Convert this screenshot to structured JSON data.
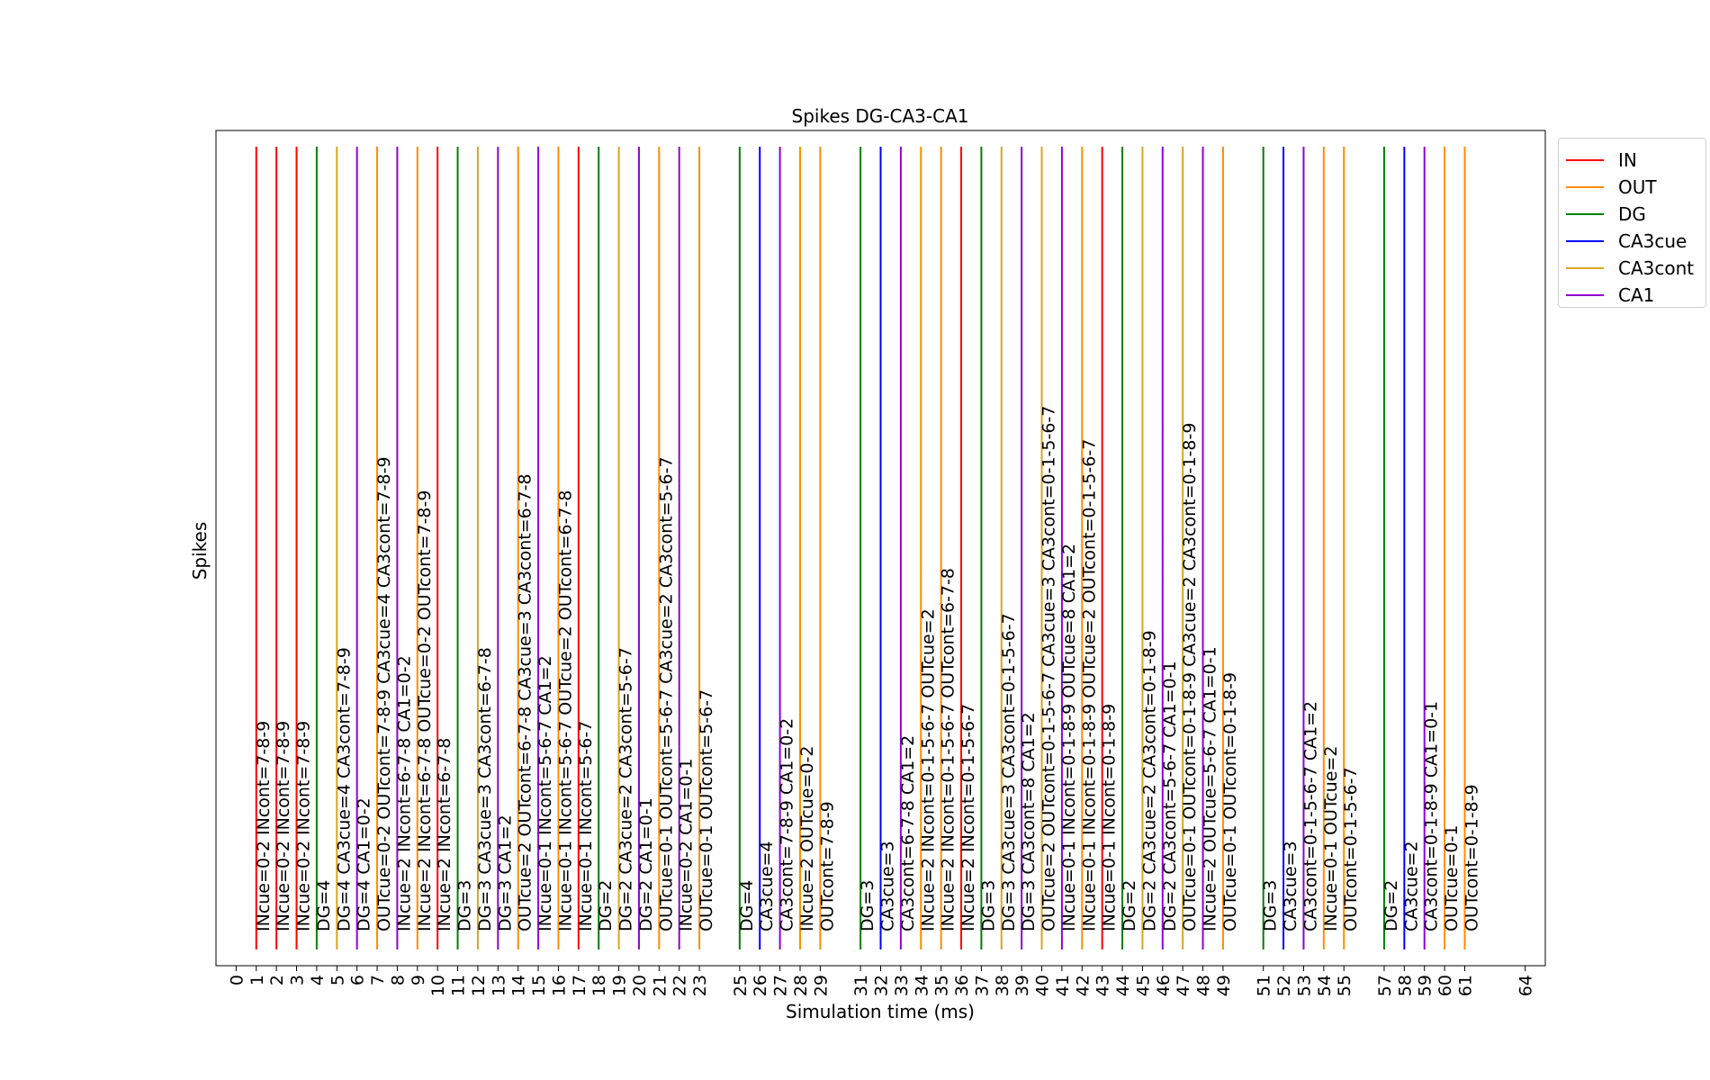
{
  "chart_data": {
    "type": "event-lines",
    "title": "Spikes DG-CA3-CA1",
    "xlabel": "Simulation time (ms)",
    "ylabel": "Spikes",
    "xlim": [
      -1,
      65
    ],
    "xticks": [
      0,
      1,
      2,
      3,
      4,
      5,
      6,
      7,
      8,
      9,
      10,
      11,
      12,
      13,
      14,
      15,
      16,
      17,
      18,
      19,
      20,
      21,
      22,
      23,
      25,
      26,
      27,
      28,
      29,
      31,
      32,
      33,
      34,
      35,
      36,
      37,
      38,
      39,
      40,
      41,
      42,
      43,
      44,
      45,
      46,
      47,
      48,
      49,
      51,
      52,
      53,
      54,
      55,
      57,
      58,
      59,
      60,
      61,
      64
    ],
    "legend": {
      "placement": "outside-top-right"
    },
    "series": [
      {
        "name": "IN",
        "color": "#ff0000"
      },
      {
        "name": "OUT",
        "color": "#ff8c00"
      },
      {
        "name": "DG",
        "color": "#008000"
      },
      {
        "name": "CA3cue",
        "color": "#0000ff"
      },
      {
        "name": "CA3cont",
        "color": "#daa520"
      },
      {
        "name": "CA1",
        "color": "#9400d3"
      }
    ],
    "events": [
      {
        "t": 1,
        "series": "IN",
        "label": "INcue=0-2 INcont=7-8-9"
      },
      {
        "t": 2,
        "series": "IN",
        "label": "INcue=0-2 INcont=7-8-9"
      },
      {
        "t": 3,
        "series": "IN",
        "label": "INcue=0-2 INcont=7-8-9"
      },
      {
        "t": 4,
        "series": "DG",
        "label": "DG=4"
      },
      {
        "t": 5,
        "series": "CA3cont",
        "label": "DG=4 CA3cue=4 CA3cont=7-8-9"
      },
      {
        "t": 6,
        "series": "CA1",
        "label": "DG=4 CA1=0-2"
      },
      {
        "t": 7,
        "series": "OUT",
        "label": "OUTcue=0-2 OUTcont=7-8-9 CA3cue=4 CA3cont=7-8-9"
      },
      {
        "t": 8,
        "series": "CA1",
        "label": "INcue=2 INcont=6-7-8 CA1=0-2"
      },
      {
        "t": 9,
        "series": "OUT",
        "label": "INcue=2 INcont=6-7-8 OUTcue=0-2 OUTcont=7-8-9"
      },
      {
        "t": 10,
        "series": "IN",
        "label": "INcue=2 INcont=6-7-8"
      },
      {
        "t": 11,
        "series": "DG",
        "label": "DG=3"
      },
      {
        "t": 12,
        "series": "CA3cont",
        "label": "DG=3 CA3cue=3 CA3cont=6-7-8"
      },
      {
        "t": 13,
        "series": "CA1",
        "label": "DG=3 CA1=2"
      },
      {
        "t": 14,
        "series": "OUT",
        "label": "OUTcue=2 OUTcont=6-7-8 CA3cue=3 CA3cont=6-7-8"
      },
      {
        "t": 15,
        "series": "CA1",
        "label": "INcue=0-1 INcont=5-6-7 CA1=2"
      },
      {
        "t": 16,
        "series": "OUT",
        "label": "INcue=0-1 INcont=5-6-7 OUTcue=2 OUTcont=6-7-8"
      },
      {
        "t": 17,
        "series": "IN",
        "label": "INcue=0-1 INcont=5-6-7"
      },
      {
        "t": 18,
        "series": "DG",
        "label": "DG=2"
      },
      {
        "t": 19,
        "series": "CA3cont",
        "label": "DG=2 CA3cue=2 CA3cont=5-6-7"
      },
      {
        "t": 20,
        "series": "CA1",
        "label": "DG=2 CA1=0-1"
      },
      {
        "t": 21,
        "series": "OUT",
        "label": "OUTcue=0-1 OUTcont=5-6-7 CA3cue=2 CA3cont=5-6-7"
      },
      {
        "t": 22,
        "series": "CA1",
        "label": "INcue=0-2 CA1=0-1"
      },
      {
        "t": 23,
        "series": "OUT",
        "label": "OUTcue=0-1 OUTcont=5-6-7"
      },
      {
        "t": 25,
        "series": "DG",
        "label": "DG=4"
      },
      {
        "t": 26,
        "series": "CA3cue",
        "label": "CA3cue=4"
      },
      {
        "t": 27,
        "series": "CA1",
        "label": "CA3cont=7-8-9 CA1=0-2"
      },
      {
        "t": 28,
        "series": "OUT",
        "label": "INcue=2 OUTcue=0-2"
      },
      {
        "t": 29,
        "series": "OUT",
        "label": "OUTcont=7-8-9"
      },
      {
        "t": 31,
        "series": "DG",
        "label": "DG=3"
      },
      {
        "t": 32,
        "series": "CA3cue",
        "label": "CA3cue=3"
      },
      {
        "t": 33,
        "series": "CA1",
        "label": "CA3cont=6-7-8 CA1=2"
      },
      {
        "t": 34,
        "series": "OUT",
        "label": "INcue=2 INcont=0-1-5-6-7 OUTcue=2"
      },
      {
        "t": 35,
        "series": "OUT",
        "label": "INcue=2 INcont=0-1-5-6-7 OUTcont=6-7-8"
      },
      {
        "t": 36,
        "series": "IN",
        "label": "INcue=2 INcont=0-1-5-6-7"
      },
      {
        "t": 37,
        "series": "DG",
        "label": "DG=3"
      },
      {
        "t": 38,
        "series": "CA3cont",
        "label": "DG=3 CA3cue=3 CA3cont=0-1-5-6-7"
      },
      {
        "t": 39,
        "series": "CA1",
        "label": "DG=3 CA3cont=8 CA1=2"
      },
      {
        "t": 40,
        "series": "CA3cont",
        "label": "OUTcue=2 OUTcont=0-1-5-6-7 CA3cue=3 CA3cont=0-1-5-6-7"
      },
      {
        "t": 41,
        "series": "CA1",
        "label": "INcue=0-1 INcont=0-1-8-9 OUTcue=8 CA1=2"
      },
      {
        "t": 42,
        "series": "OUT",
        "label": "INcue=0-1 INcont=0-1-8-9 OUTcue=2 OUTcont=0-1-5-6-7"
      },
      {
        "t": 43,
        "series": "IN",
        "label": "INcue=0-1 INcont=0-1-8-9"
      },
      {
        "t": 44,
        "series": "DG",
        "label": "DG=2"
      },
      {
        "t": 45,
        "series": "CA3cont",
        "label": "DG=2 CA3cue=2 CA3cont=0-1-8-9"
      },
      {
        "t": 46,
        "series": "CA1",
        "label": "DG=2 CA3cont=5-6-7 CA1=0-1"
      },
      {
        "t": 47,
        "series": "CA3cont",
        "label": "OUTcue=0-1 OUTcont=0-1-8-9 CA3cue=2 CA3cont=0-1-8-9"
      },
      {
        "t": 48,
        "series": "CA1",
        "label": "INcue=2 OUTcue=5-6-7 CA1=0-1"
      },
      {
        "t": 49,
        "series": "OUT",
        "label": "OUTcue=0-1 OUTcont=0-1-8-9"
      },
      {
        "t": 51,
        "series": "DG",
        "label": "DG=3"
      },
      {
        "t": 52,
        "series": "CA3cue",
        "label": "CA3cue=3"
      },
      {
        "t": 53,
        "series": "CA1",
        "label": "CA3cont=0-1-5-6-7 CA1=2"
      },
      {
        "t": 54,
        "series": "OUT",
        "label": "INcue=0-1 OUTcue=2"
      },
      {
        "t": 55,
        "series": "OUT",
        "label": "OUTcont=0-1-5-6-7"
      },
      {
        "t": 57,
        "series": "DG",
        "label": "DG=2"
      },
      {
        "t": 58,
        "series": "CA3cue",
        "label": "CA3cue=2"
      },
      {
        "t": 59,
        "series": "CA1",
        "label": "CA3cont=0-1-8-9 CA1=0-1"
      },
      {
        "t": 60,
        "series": "OUT",
        "label": "OUTcue=0-1"
      },
      {
        "t": 61,
        "series": "OUT",
        "label": "OUTcont=0-1-8-9"
      }
    ]
  }
}
